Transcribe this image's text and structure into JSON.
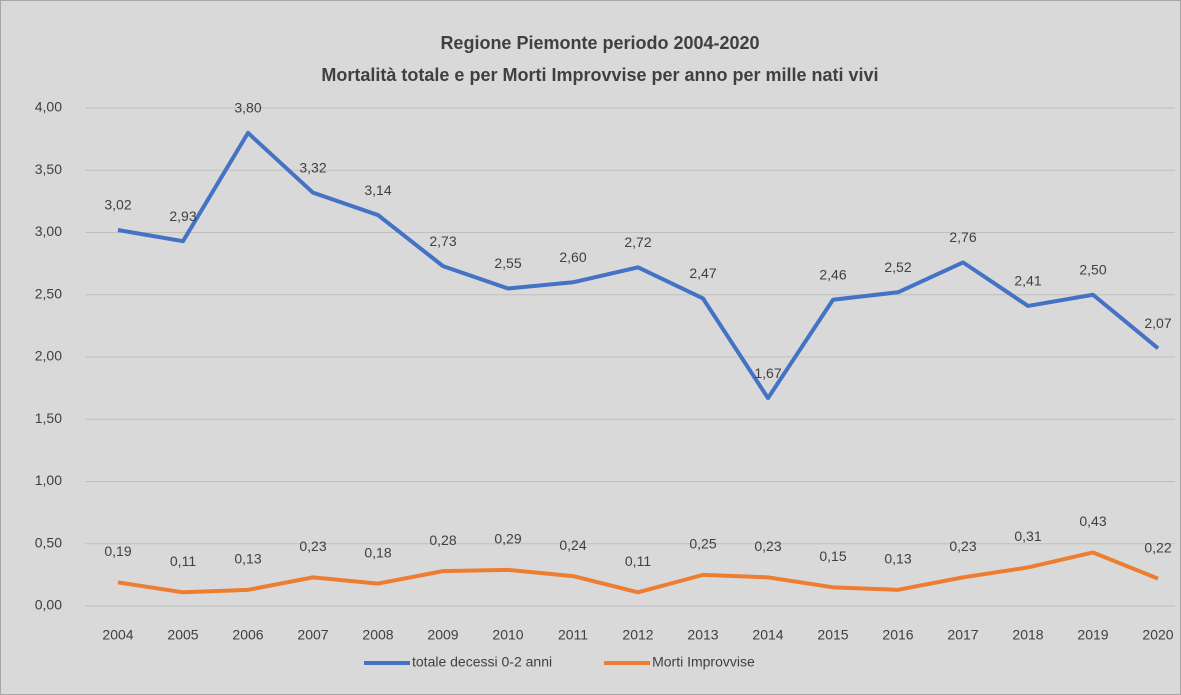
{
  "chart_data": {
    "type": "line",
    "title": "Regione Piemonte periodo 2004-2020",
    "subtitle": "Mortalità totale e per Morti Improvvise per anno per mille nati vivi",
    "categories": [
      "2004",
      "2005",
      "2006",
      "2007",
      "2008",
      "2009",
      "2010",
      "2011",
      "2012",
      "2013",
      "2014",
      "2015",
      "2016",
      "2017",
      "2018",
      "2019",
      "2020"
    ],
    "series": [
      {
        "name": "totale decessi 0-2 anni",
        "color": "#4472c4",
        "values": [
          3.02,
          2.93,
          3.8,
          3.32,
          3.14,
          2.73,
          2.55,
          2.6,
          2.72,
          2.47,
          1.67,
          2.46,
          2.52,
          2.76,
          2.41,
          2.5,
          2.07
        ],
        "value_labels": [
          "3,02",
          "2,93",
          "3,80",
          "3,32",
          "3,14",
          "2,73",
          "2,55",
          "2,60",
          "2,72",
          "2,47",
          "1,67",
          "2,46",
          "2,52",
          "2,76",
          "2,41",
          "2,50",
          "2,07"
        ]
      },
      {
        "name": "Morti Improvvise",
        "color": "#ed7d31",
        "values": [
          0.19,
          0.11,
          0.13,
          0.23,
          0.18,
          0.28,
          0.29,
          0.24,
          0.11,
          0.25,
          0.23,
          0.15,
          0.13,
          0.23,
          0.31,
          0.43,
          0.22
        ],
        "value_labels": [
          "0,19",
          "0,11",
          "0,13",
          "0,23",
          "0,18",
          "0,28",
          "0,29",
          "0,24",
          "0,11",
          "0,25",
          "0,23",
          "0,15",
          "0,13",
          "0,23",
          "0,31",
          "0,43",
          "0,22"
        ]
      }
    ],
    "ylim": [
      0,
      4
    ],
    "yticks": [
      {
        "value": 0,
        "label": "0,00"
      },
      {
        "value": 0.5,
        "label": "0,50"
      },
      {
        "value": 1,
        "label": "1,00"
      },
      {
        "value": 1.5,
        "label": "1,50"
      },
      {
        "value": 2,
        "label": "2,00"
      },
      {
        "value": 2.5,
        "label": "2,50"
      },
      {
        "value": 3,
        "label": "3,00"
      },
      {
        "value": 3.5,
        "label": "3,50"
      },
      {
        "value": 4,
        "label": "4,00"
      }
    ],
    "grid": true,
    "legend": "bottom"
  }
}
